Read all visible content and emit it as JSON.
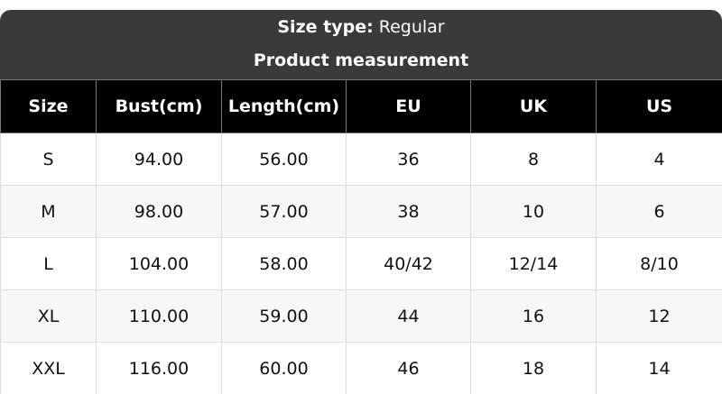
{
  "size_type_label": "Size type:",
  "size_type_value": "Regular",
  "section_title": "Product measurement",
  "columns": [
    "Size",
    "Bust(cm)",
    "Length(cm)",
    "EU",
    "UK",
    "US"
  ],
  "rows": [
    [
      "S",
      "94.00",
      "56.00",
      "36",
      "8",
      "4"
    ],
    [
      "M",
      "98.00",
      "57.00",
      "38",
      "10",
      "6"
    ],
    [
      "L",
      "104.00",
      "58.00",
      "40/42",
      "12/14",
      "8/10"
    ],
    [
      "XL",
      "110.00",
      "59.00",
      "44",
      "16",
      "12"
    ],
    [
      "XXL",
      "116.00",
      "60.00",
      "46",
      "18",
      "14"
    ]
  ]
}
